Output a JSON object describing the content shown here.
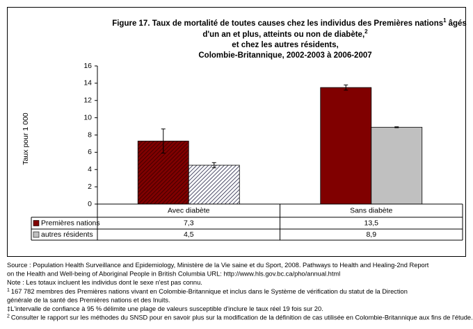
{
  "chart_data": {
    "type": "bar",
    "title": {
      "line1": "Figure 17. Taux de mortalité de toutes causes chez les individus des Premières nations",
      "sup1": "1",
      "line1_end": "âgés",
      "line2": "d'un an et plus, atteints ou non de diabète,",
      "sup2": "2",
      "line3": "et chez les autres résidents,",
      "line4": "Colombie-Britannique, 2002-2003 à 2006-2007"
    },
    "y_label": "Taux pour 1 000",
    "categories": [
      "Avec diabète",
      "Sans diabète"
    ],
    "hatched": [
      true,
      false
    ],
    "series": [
      {
        "name": "Premières nations",
        "color": "#800000",
        "values": [
          7.3,
          13.5
        ],
        "value_labels": [
          "7,3",
          "13,5"
        ],
        "errors": [
          1.4,
          0.3
        ]
      },
      {
        "name": "autres résidents",
        "color": "#c0c0c0",
        "values": [
          4.5,
          8.9
        ],
        "value_labels": [
          "4,5",
          "8,9"
        ],
        "errors": [
          0.3,
          0.05
        ]
      }
    ],
    "ylim": [
      0,
      16
    ],
    "yticks": [
      0,
      2,
      4,
      6,
      8,
      10,
      12,
      14,
      16
    ],
    "grid": false
  },
  "notes": [
    {
      "text": "Source : Population Health Surveillance and Epidemiology, Ministère de la Vie saine et du Sport,  2008. Pathways to Health and Healing-2nd Report"
    },
    {
      "text": "on the Health and Well-being of Aboriginal People in British Columbia URL: http://www.hls.gov.bc.ca/pho/annual.html"
    },
    {
      "text": "Note : Les totaux incluent les individus dont le sexe n'est pas connu."
    },
    {
      "sup": "1",
      "text": "167 782 membres des Premières nations vivant en Colombie-Britannique et inclus dans le Système de vérification du statut de la Direction"
    },
    {
      "text": "générale de la santé des Premières nations et des Inuits."
    },
    {
      "text": "‡L'intervalle de confiance à 95 % délimite une plage de valeurs susceptible d'inclure le taux réel 19 fois sur 20."
    },
    {
      "sup": "2",
      "text": "Consulter le rapport sur les méthodes du SNSD pour en savoir plus sur la modification de la définition de cas utilisée en Colombie-Britannique aux fins de l'étude."
    }
  ]
}
